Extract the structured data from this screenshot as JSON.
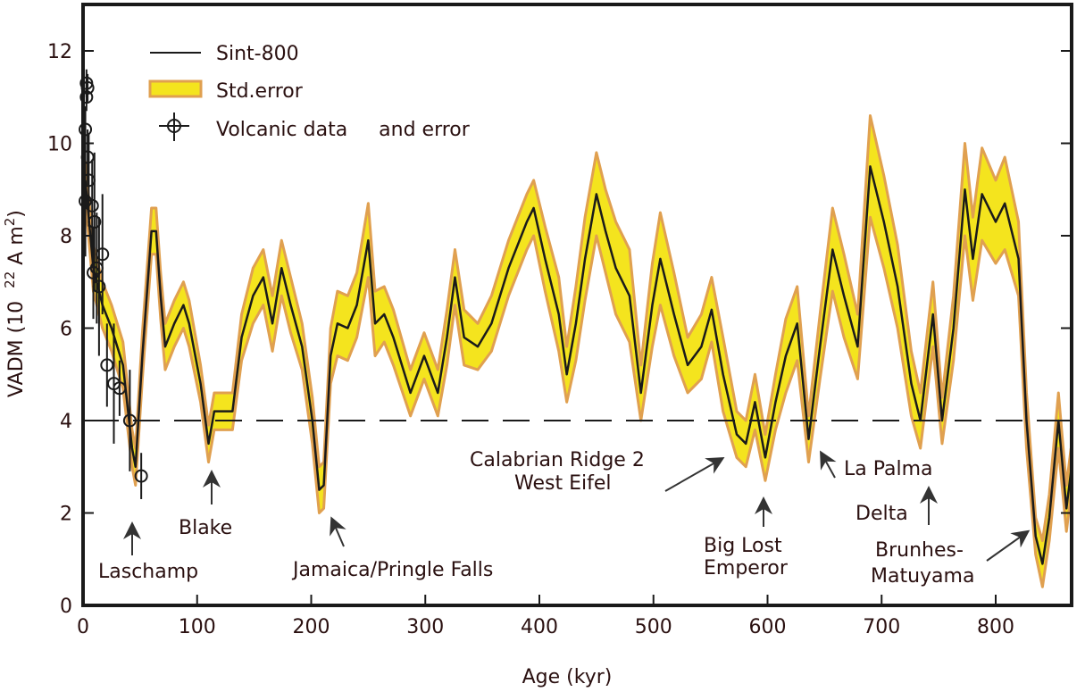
{
  "chart_data": {
    "type": "line",
    "xlabel": "Age (kyr)",
    "ylabel": "VADM (10",
    "ylabel_exp": "22",
    "ylabel_unit": " A m",
    "ylabel_exp2": "2",
    "ylabel_close": ")",
    "xlim": [
      0,
      866
    ],
    "ylim": [
      0,
      13
    ],
    "xticks": [
      0,
      100,
      200,
      300,
      400,
      500,
      600,
      700,
      800
    ],
    "yticks": [
      0,
      2,
      4,
      6,
      8,
      10,
      12
    ],
    "threshold_line": 4,
    "legend_position": "top-left",
    "legend": [
      {
        "label": "Sint-800",
        "kind": "line"
      },
      {
        "label": "Std.error",
        "kind": "band"
      },
      {
        "label": "Volcanic data     and error",
        "kind": "marker"
      }
    ],
    "colors": {
      "line": "#1a1a1a",
      "band_fill": "#f4e41e",
      "band_edge": "#e0a050",
      "marker": "#1a1a1a",
      "frame": "#1a1a1a"
    },
    "series": [
      {
        "name": "Sint-800",
        "x": [
          2,
          9,
          17,
          25,
          35,
          43,
          46,
          52,
          60,
          64,
          68,
          72,
          80,
          88,
          93,
          103,
          110,
          115,
          131,
          139,
          149,
          158,
          166,
          174,
          182,
          192,
          201,
          207,
          211,
          217,
          223,
          232,
          240,
          250,
          256,
          264,
          272,
          287,
          299,
          311,
          319,
          326,
          334,
          346,
          358,
          373,
          389,
          395,
          405,
          417,
          424,
          432,
          440,
          450,
          458,
          467,
          479,
          489,
          499,
          506,
          518,
          530,
          542,
          551,
          561,
          573,
          581,
          589,
          598,
          607,
          616,
          626,
          636,
          646,
          657,
          667,
          679,
          690,
          702,
          714,
          726,
          734,
          745,
          753,
          763,
          773,
          780,
          788,
          800,
          808,
          820,
          827,
          835,
          841,
          847,
          855,
          862,
          866
        ],
        "y": [
          9.2,
          7.3,
          6.5,
          6.0,
          5.2,
          3.4,
          3.0,
          5.4,
          8.1,
          8.1,
          6.7,
          5.6,
          6.1,
          6.5,
          6.1,
          4.8,
          3.5,
          4.2,
          4.2,
          5.8,
          6.7,
          7.1,
          6.1,
          7.3,
          6.5,
          5.6,
          4.0,
          2.5,
          2.6,
          5.4,
          6.1,
          6.0,
          6.5,
          7.9,
          6.1,
          6.3,
          5.8,
          4.6,
          5.4,
          4.6,
          5.8,
          7.1,
          5.8,
          5.6,
          6.1,
          7.3,
          8.3,
          8.6,
          7.5,
          6.3,
          5.0,
          6.1,
          7.5,
          8.9,
          8.1,
          7.3,
          6.7,
          4.6,
          6.5,
          7.5,
          6.3,
          5.2,
          5.6,
          6.4,
          5.0,
          3.7,
          3.5,
          4.4,
          3.2,
          4.4,
          5.4,
          6.1,
          3.6,
          5.6,
          7.7,
          6.7,
          5.6,
          9.5,
          8.3,
          6.9,
          4.8,
          4.0,
          6.3,
          4.0,
          6.0,
          9.0,
          7.5,
          8.9,
          8.3,
          8.7,
          7.5,
          4.0,
          1.5,
          0.9,
          1.9,
          4.0,
          2.1,
          2.9
        ],
        "std_error": [
          0.4,
          0.5,
          0.5,
          0.5,
          0.5,
          0.4,
          0.4,
          0.5,
          0.5,
          0.5,
          0.5,
          0.5,
          0.5,
          0.5,
          0.5,
          0.4,
          0.4,
          0.4,
          0.4,
          0.5,
          0.6,
          0.6,
          0.6,
          0.6,
          0.6,
          0.5,
          0.5,
          0.5,
          0.5,
          0.6,
          0.7,
          0.7,
          0.7,
          0.8,
          0.7,
          0.6,
          0.6,
          0.5,
          0.5,
          0.5,
          0.6,
          0.6,
          0.6,
          0.5,
          0.6,
          0.6,
          0.6,
          0.6,
          0.7,
          0.8,
          0.6,
          0.8,
          0.9,
          0.9,
          0.9,
          1.0,
          1.0,
          0.6,
          0.9,
          1.0,
          0.9,
          0.6,
          0.7,
          0.7,
          0.8,
          0.5,
          0.5,
          0.6,
          0.5,
          0.6,
          0.8,
          0.8,
          0.5,
          0.7,
          0.9,
          0.9,
          0.7,
          1.1,
          1.0,
          0.9,
          0.7,
          0.6,
          0.7,
          0.5,
          0.7,
          1.0,
          0.9,
          1.0,
          0.9,
          1.0,
          0.8,
          0.6,
          0.4,
          0.5,
          0.5,
          0.6,
          0.5,
          0.5
        ]
      },
      {
        "name": "Volcanic data",
        "type": "scatter",
        "x": [
          3,
          4,
          3,
          2,
          4,
          5,
          2,
          8,
          10,
          17,
          12,
          9,
          14,
          21,
          27,
          32,
          41,
          51
        ],
        "y": [
          11.0,
          11.2,
          11.3,
          10.3,
          9.7,
          9.2,
          8.75,
          8.65,
          8.3,
          7.6,
          7.3,
          7.2,
          6.9,
          5.2,
          4.8,
          4.7,
          4.0,
          2.8
        ],
        "error": [
          0.3,
          0.3,
          0.3,
          0.5,
          0.6,
          1.0,
          1.2,
          1.0,
          1.5,
          1.3,
          1.2,
          1.0,
          1.5,
          0.9,
          1.3,
          0.6,
          1.1,
          0.5
        ]
      }
    ],
    "annotations": [
      {
        "id": "laschamp",
        "lines": [
          "Laschamp"
        ]
      },
      {
        "id": "blake",
        "lines": [
          "Blake"
        ]
      },
      {
        "id": "jamaica",
        "lines": [
          "Jamaica/Pringle Falls"
        ]
      },
      {
        "id": "calabrian",
        "lines": [
          "Calabrian Ridge 2",
          "West Eifel"
        ]
      },
      {
        "id": "biglost",
        "lines": [
          "Big Lost",
          "Emperor"
        ]
      },
      {
        "id": "lapalma",
        "lines": [
          "La Palma"
        ]
      },
      {
        "id": "delta",
        "lines": [
          "Delta"
        ]
      },
      {
        "id": "brunhes",
        "lines": [
          "Brunhes-",
          "Matuyama"
        ]
      }
    ]
  }
}
